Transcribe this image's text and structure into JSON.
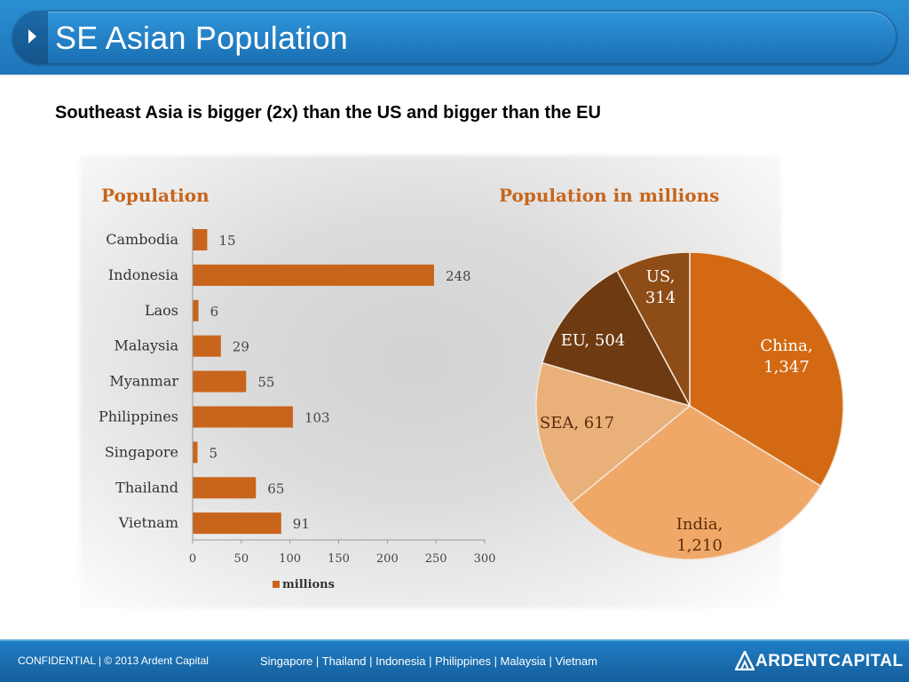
{
  "header": {
    "title": "SE Asian Population"
  },
  "subtitle": "Southeast Asia is bigger (2x) than the US and bigger than the EU",
  "chart_data": [
    {
      "type": "bar",
      "orientation": "horizontal",
      "title": "Population",
      "categories": [
        "Cambodia",
        "Indonesia",
        "Laos",
        "Malaysia",
        "Myanmar",
        "Philippines",
        "Singapore",
        "Thailand",
        "Vietnam"
      ],
      "series": [
        {
          "name": "millions",
          "values": [
            15,
            248,
            6,
            29,
            55,
            103,
            5,
            65,
            91
          ]
        }
      ],
      "x_ticks": [
        0,
        50,
        100,
        150,
        200,
        250,
        300
      ],
      "xlim": [
        0,
        300
      ],
      "legend": {
        "label": "millions",
        "position": "bottom"
      },
      "bar_color": "#c8651b",
      "grid": false
    },
    {
      "type": "pie",
      "title": "Population in millions",
      "slices": [
        {
          "label": "China,",
          "value_text": "1,347",
          "value": 1347,
          "color": "#d36a13"
        },
        {
          "label": "India,",
          "value_text": "1,210",
          "value": 1210,
          "color": "#f0a868"
        },
        {
          "label": "SEA,",
          "value_text": "617",
          "value": 617,
          "color": "#e9b07a"
        },
        {
          "label": "EU,",
          "value_text": "504",
          "value": 504,
          "color": "#6e3a12"
        },
        {
          "label": "US,",
          "value_text": "314",
          "value": 314,
          "color": "#8e4d17"
        }
      ]
    }
  ],
  "footer": {
    "confidential": "CONFIDENTIAL  |  © 2013  Ardent Capital",
    "countries": "Singapore  |  Thailand  |  Indonesia  |  Philippines  |  Malaysia  |  Vietnam",
    "logo_text": "ARDENTCAPITAL"
  },
  "colors": {
    "header_blue": "#1f74b8",
    "title_orange": "#c8651b",
    "footer_blue": "#1f7dc4"
  }
}
